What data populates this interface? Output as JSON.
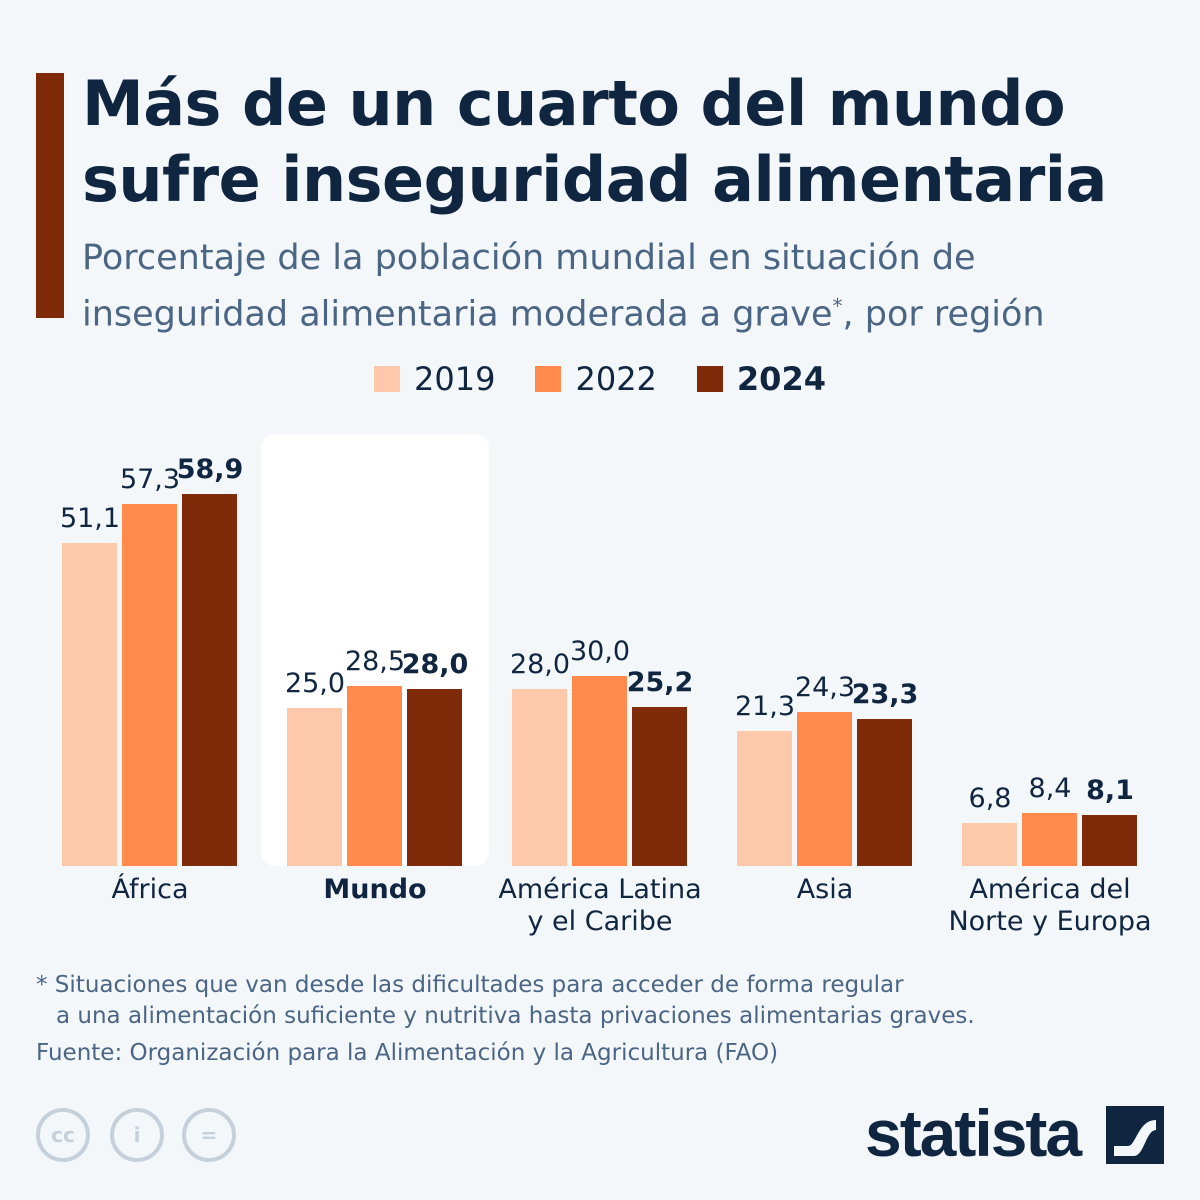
{
  "title": [
    "Más de un cuarto del mundo",
    "sufre inseguridad alimentaria"
  ],
  "subtitle": [
    "Porcentaje de la población mundial en situación de",
    "inseguridad alimentaria moderada a grave",
    "*",
    ", por región"
  ],
  "chart_data": {
    "type": "bar",
    "categories": [
      "África",
      "Mundo",
      "América Latina y el Caribe",
      "Asia",
      "América del Norte y Europa"
    ],
    "series": [
      {
        "name": "2019",
        "color": "#fec8aa",
        "values": [
          51.1,
          25.0,
          28.0,
          21.3,
          6.8
        ]
      },
      {
        "name": "2022",
        "color": "#ff8a4b",
        "values": [
          57.3,
          28.5,
          30.0,
          24.3,
          8.4
        ]
      },
      {
        "name": "2024",
        "color": "#7f2b0a",
        "values": [
          58.9,
          28.0,
          25.2,
          23.3,
          8.1
        ]
      }
    ],
    "highlight": "Mundo",
    "ylim": [
      0,
      60
    ],
    "grid": false,
    "legend": "top-center"
  },
  "note": [
    "* Situaciones que van desde las dificultades para acceder de forma regular",
    "a una alimentación suficiente y nutritiva hasta privaciones alimentarias graves."
  ],
  "source": "Fuente: Organización para la Alimentación y la Agricultura (FAO)",
  "logo": "statista",
  "license_icons": [
    "cc-icon",
    "by-icon",
    "nd-icon"
  ]
}
